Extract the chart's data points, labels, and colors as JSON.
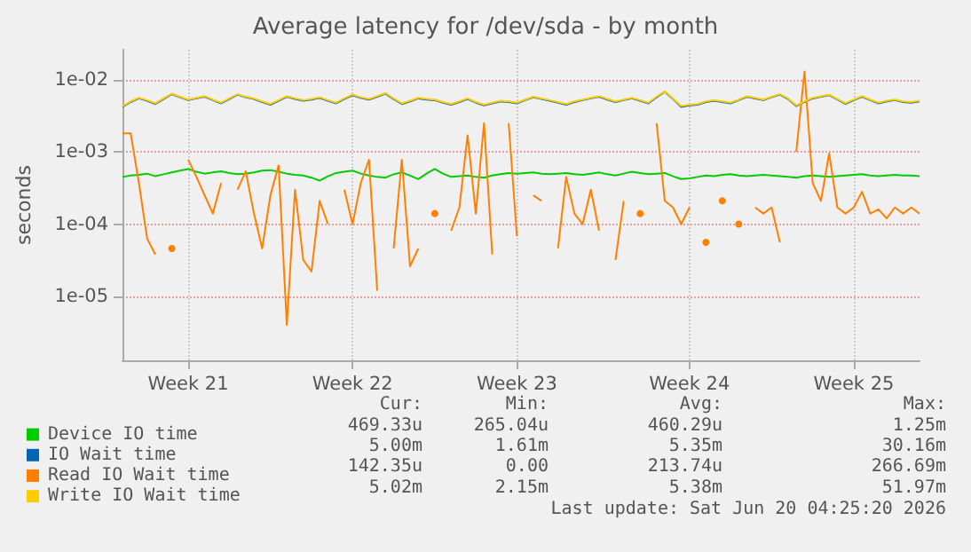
{
  "chart_data": {
    "type": "line",
    "title": "Average latency for /dev/sda - by month",
    "ylabel": "seconds",
    "log": "y",
    "grid": true,
    "legend": "bottom left",
    "marker": "none",
    "line_style": "solid",
    "categories": [
      null,
      null,
      null,
      null,
      null,
      null,
      null,
      null,
      "Week 21",
      null,
      null,
      null,
      null,
      null,
      null,
      null,
      null,
      null,
      null,
      null,
      null,
      null,
      null,
      null,
      null,
      null,
      null,
      null,
      "Week 22",
      null,
      null,
      null,
      null,
      null,
      null,
      null,
      null,
      null,
      null,
      null,
      null,
      null,
      null,
      null,
      null,
      null,
      null,
      null,
      "Week 23",
      null,
      null,
      null,
      null,
      null,
      null,
      null,
      null,
      null,
      null,
      null,
      null,
      null,
      null,
      null,
      null,
      null,
      null,
      null,
      null,
      "Week 24",
      null,
      null,
      null,
      null,
      null,
      null,
      null,
      null,
      null,
      null,
      null,
      null,
      null,
      null,
      null,
      null,
      null,
      null,
      null,
      "Week 25",
      null,
      null,
      null,
      null,
      null,
      null,
      null,
      null
    ],
    "ylim": [
      1.3e-06,
      0.026
    ],
    "yticks": [
      {
        "value": 0.01,
        "label": "1e-02"
      },
      {
        "value": 0.001,
        "label": "1e-03"
      },
      {
        "value": 0.0001,
        "label": "1e-04"
      },
      {
        "value": 1e-05,
        "label": "1e-05"
      }
    ],
    "series": [
      {
        "name": "Device IO time",
        "color": "#00cc00",
        "values": [
          0.00045,
          0.00047,
          0.00048,
          0.0005,
          0.00046,
          0.00049,
          0.00052,
          0.00055,
          0.00058,
          0.00053,
          0.0005,
          0.00052,
          0.00054,
          0.00051,
          0.00049,
          0.0005,
          0.00052,
          0.00055,
          0.00056,
          0.00053,
          0.0005,
          0.00048,
          0.00047,
          0.00044,
          0.0004,
          0.00046,
          0.00051,
          0.00053,
          0.00055,
          0.0005,
          0.00047,
          0.00045,
          0.00044,
          0.00049,
          0.00052,
          0.00047,
          0.00042,
          0.0005,
          0.00058,
          0.0005,
          0.00045,
          0.00046,
          0.00047,
          0.00045,
          0.00044,
          0.00047,
          0.00049,
          0.00051,
          0.0005,
          0.00051,
          0.00052,
          0.0005,
          0.00049,
          0.0005,
          0.00051,
          0.00049,
          0.00048,
          0.0005,
          0.00052,
          0.00049,
          0.00047,
          0.0005,
          0.00053,
          0.00051,
          0.00049,
          0.0005,
          0.00051,
          0.00046,
          0.00042,
          0.00043,
          0.00045,
          0.00047,
          0.00046,
          0.00048,
          0.00049,
          0.00047,
          0.00046,
          0.00047,
          0.00048,
          0.00047,
          0.00046,
          0.00045,
          0.00044,
          0.00046,
          0.00047,
          0.00046,
          0.00045,
          0.00046,
          0.00047,
          0.00048,
          0.00049,
          0.00047,
          0.00046,
          0.00047,
          0.00048,
          0.00047,
          0.00047,
          0.00046
        ]
      },
      {
        "name": "IO Wait time",
        "color": "#0066b3",
        "values": [
          0.0042,
          0.0049,
          0.0055,
          0.0051,
          0.0046,
          0.0054,
          0.0063,
          0.0057,
          0.0052,
          0.0055,
          0.0058,
          0.0052,
          0.0047,
          0.0054,
          0.0062,
          0.0057,
          0.0054,
          0.0049,
          0.0045,
          0.0051,
          0.0058,
          0.0054,
          0.0051,
          0.0053,
          0.0056,
          0.0051,
          0.0047,
          0.0054,
          0.0061,
          0.0056,
          0.0053,
          0.0058,
          0.0064,
          0.0054,
          0.0046,
          0.005,
          0.0055,
          0.0053,
          0.0052,
          0.0048,
          0.0045,
          0.0049,
          0.0054,
          0.0048,
          0.0044,
          0.0047,
          0.005,
          0.0049,
          0.0047,
          0.0052,
          0.0057,
          0.0054,
          0.0051,
          0.0048,
          0.0045,
          0.0049,
          0.0052,
          0.0055,
          0.0058,
          0.0053,
          0.0049,
          0.0052,
          0.0055,
          0.0051,
          0.0047,
          0.0057,
          0.0068,
          0.0054,
          0.0042,
          0.0044,
          0.0045,
          0.0049,
          0.0051,
          0.0049,
          0.0047,
          0.0052,
          0.0058,
          0.0055,
          0.0052,
          0.0057,
          0.0062,
          0.0054,
          0.0043,
          0.0049,
          0.0055,
          0.0058,
          0.0061,
          0.0053,
          0.0046,
          0.0052,
          0.0058,
          0.0052,
          0.0047,
          0.005,
          0.0052,
          0.0049,
          0.0048,
          0.005
        ]
      },
      {
        "name": "Read IO Wait time",
        "color": "#ff8000",
        "values": [
          0.0018,
          0.0018,
          0.00037,
          6.3e-05,
          3.8e-05,
          null,
          4.6e-05,
          null,
          0.00078,
          0.00045,
          0.00025,
          0.00014,
          0.00037,
          null,
          0.0003,
          0.00054,
          0.00014,
          4.6e-05,
          0.00025,
          0.00065,
          4e-06,
          0.0003,
          3.2e-05,
          2.2e-05,
          0.00021,
          0.0001,
          null,
          0.0003,
          0.0001,
          0.00037,
          0.00078,
          1.2e-05,
          null,
          4.6e-05,
          0.00078,
          2.6e-05,
          4.6e-05,
          null,
          0.00014,
          null,
          8.1e-05,
          0.00017,
          0.0017,
          0.00014,
          0.0025,
          3.8e-05,
          null,
          0.0025,
          6.8e-05,
          null,
          0.00025,
          0.00021,
          null,
          4.6e-05,
          0.00045,
          0.00014,
          0.0001,
          0.0003,
          8.1e-05,
          null,
          3.2e-05,
          0.00021,
          null,
          0.00014,
          null,
          0.0025,
          0.00021,
          0.00017,
          0.0001,
          0.00017,
          null,
          5.6e-05,
          null,
          0.00021,
          null,
          0.0001,
          null,
          0.00017,
          0.00014,
          0.00017,
          5.6e-05,
          null,
          0.001,
          0.013,
          0.00037,
          0.00021,
          0.00095,
          0.00017,
          0.00014,
          0.00017,
          0.00028,
          0.00014,
          0.00016,
          0.00012,
          0.00017,
          0.00014,
          0.00017,
          0.00014
        ]
      },
      {
        "name": "Write IO Wait time",
        "color": "#ffcc00",
        "values": [
          0.0043,
          0.005,
          0.0056,
          0.0052,
          0.0047,
          0.0055,
          0.0064,
          0.0058,
          0.0053,
          0.0056,
          0.0059,
          0.0053,
          0.0048,
          0.0055,
          0.0063,
          0.0058,
          0.0055,
          0.005,
          0.0046,
          0.0052,
          0.0059,
          0.0055,
          0.0052,
          0.0054,
          0.0057,
          0.0052,
          0.0048,
          0.0055,
          0.0062,
          0.0057,
          0.0054,
          0.0059,
          0.0065,
          0.0055,
          0.0047,
          0.0051,
          0.0056,
          0.0054,
          0.0053,
          0.0049,
          0.0046,
          0.005,
          0.0055,
          0.0049,
          0.0045,
          0.0048,
          0.0051,
          0.005,
          0.0048,
          0.0053,
          0.0058,
          0.0055,
          0.0052,
          0.0049,
          0.0046,
          0.005,
          0.0053,
          0.0056,
          0.0059,
          0.0054,
          0.005,
          0.0053,
          0.0056,
          0.0052,
          0.0048,
          0.0058,
          0.0069,
          0.0055,
          0.0043,
          0.0045,
          0.0046,
          0.005,
          0.0052,
          0.005,
          0.0048,
          0.0053,
          0.0059,
          0.0056,
          0.0053,
          0.0058,
          0.0063,
          0.0055,
          0.0044,
          0.005,
          0.0056,
          0.0059,
          0.0062,
          0.0054,
          0.0047,
          0.0053,
          0.0059,
          0.0053,
          0.0048,
          0.0051,
          0.0053,
          0.005,
          0.0049,
          0.0051
        ]
      }
    ],
    "annotations": [
      "Cur:",
      "Min:",
      "Avg:",
      "Max:",
      "469.33u",
      "265.04u",
      "460.29u",
      "1.25m",
      "5.00m",
      "1.61m",
      "5.35m",
      "30.16m",
      "142.35u",
      "0.00",
      "213.74u",
      "266.69m",
      "5.02m",
      "2.15m",
      "5.38m",
      "51.97m",
      "Last update: Sat Jun 20 04:25:20 2026"
    ]
  }
}
